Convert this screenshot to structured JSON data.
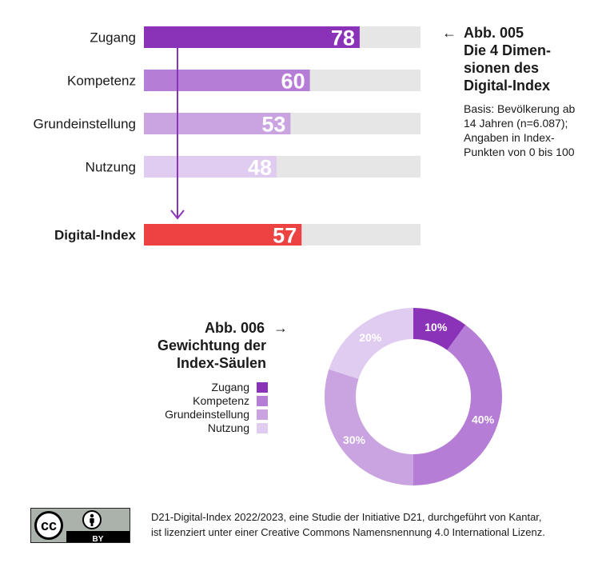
{
  "colors": {
    "zugang": "#8b33b8",
    "kompetenz": "#b57dd6",
    "grundeinstellung": "#c9a4e1",
    "nutzung": "#e0ccf0",
    "index": "#ec4242",
    "track": "#e6e6e6",
    "arrow": "#8b33b8"
  },
  "fig1": {
    "arrow": "←",
    "number": "Abb. 005",
    "title_lines": [
      "Die 4 Dimen-",
      "sionen des",
      "Digital-Index"
    ],
    "note_lines": [
      "Basis: Bevölkerung ab",
      "14 Jahren (n=6.087);",
      "Angaben in Index-",
      "Punkten von 0 bis 100"
    ]
  },
  "fig2": {
    "number": "Abb. 006",
    "arrow": "→",
    "title_lines": [
      "Gewichtung der",
      "Index-Säulen"
    ]
  },
  "chart_data": [
    {
      "type": "bar",
      "orientation": "horizontal",
      "categories": [
        "Zugang",
        "Kompetenz",
        "Grundeinstellung",
        "Nutzung",
        "Digital-Index"
      ],
      "values": [
        78,
        60,
        53,
        48,
        57
      ],
      "xlim": [
        0,
        100
      ],
      "grid": false
    },
    {
      "type": "pie",
      "donut": true,
      "labels": [
        "Zugang",
        "Kompetenz",
        "Grundeinstellung",
        "Nutzung"
      ],
      "values": [
        10,
        40,
        30,
        20
      ],
      "value_labels": [
        "10%",
        "40%",
        "30%",
        "20%"
      ],
      "legend": "left"
    }
  ],
  "footer": {
    "badge_cc": "cc",
    "badge_by": "BY",
    "line1": "D21-Digital-Index 2022/2023, eine Studie der Initiative D21, durchgeführt von Kantar,",
    "line2": "ist lizenziert unter einer Creative Commons Namensnennung 4.0 International Lizenz."
  }
}
